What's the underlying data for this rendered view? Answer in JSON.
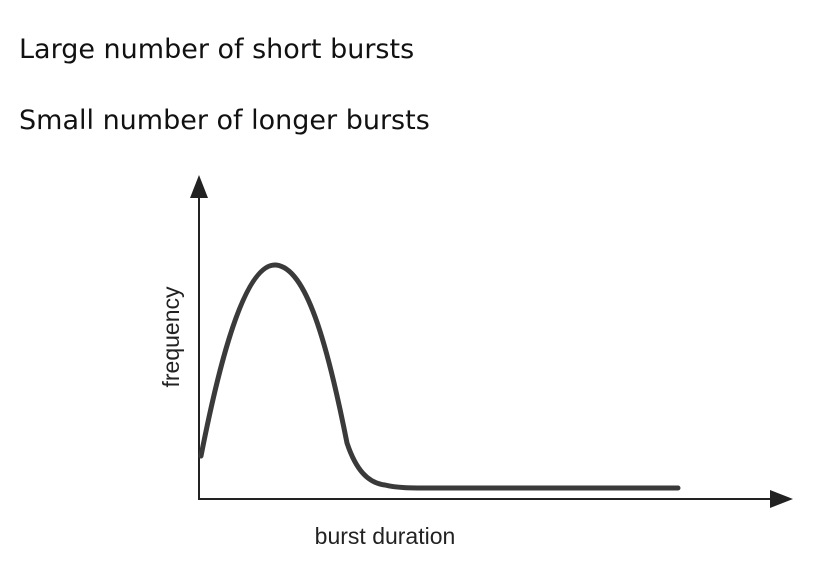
{
  "statements": [
    "Large number of short bursts",
    "Small number of longer bursts"
  ],
  "graph": {
    "ylabel": "frequency",
    "xlabel": "burst duration",
    "curve_description_name": "frequency-distribution-curve"
  },
  "colors": {
    "axis": "#222222",
    "curve": "#3a3a3a",
    "text": "#111111"
  }
}
